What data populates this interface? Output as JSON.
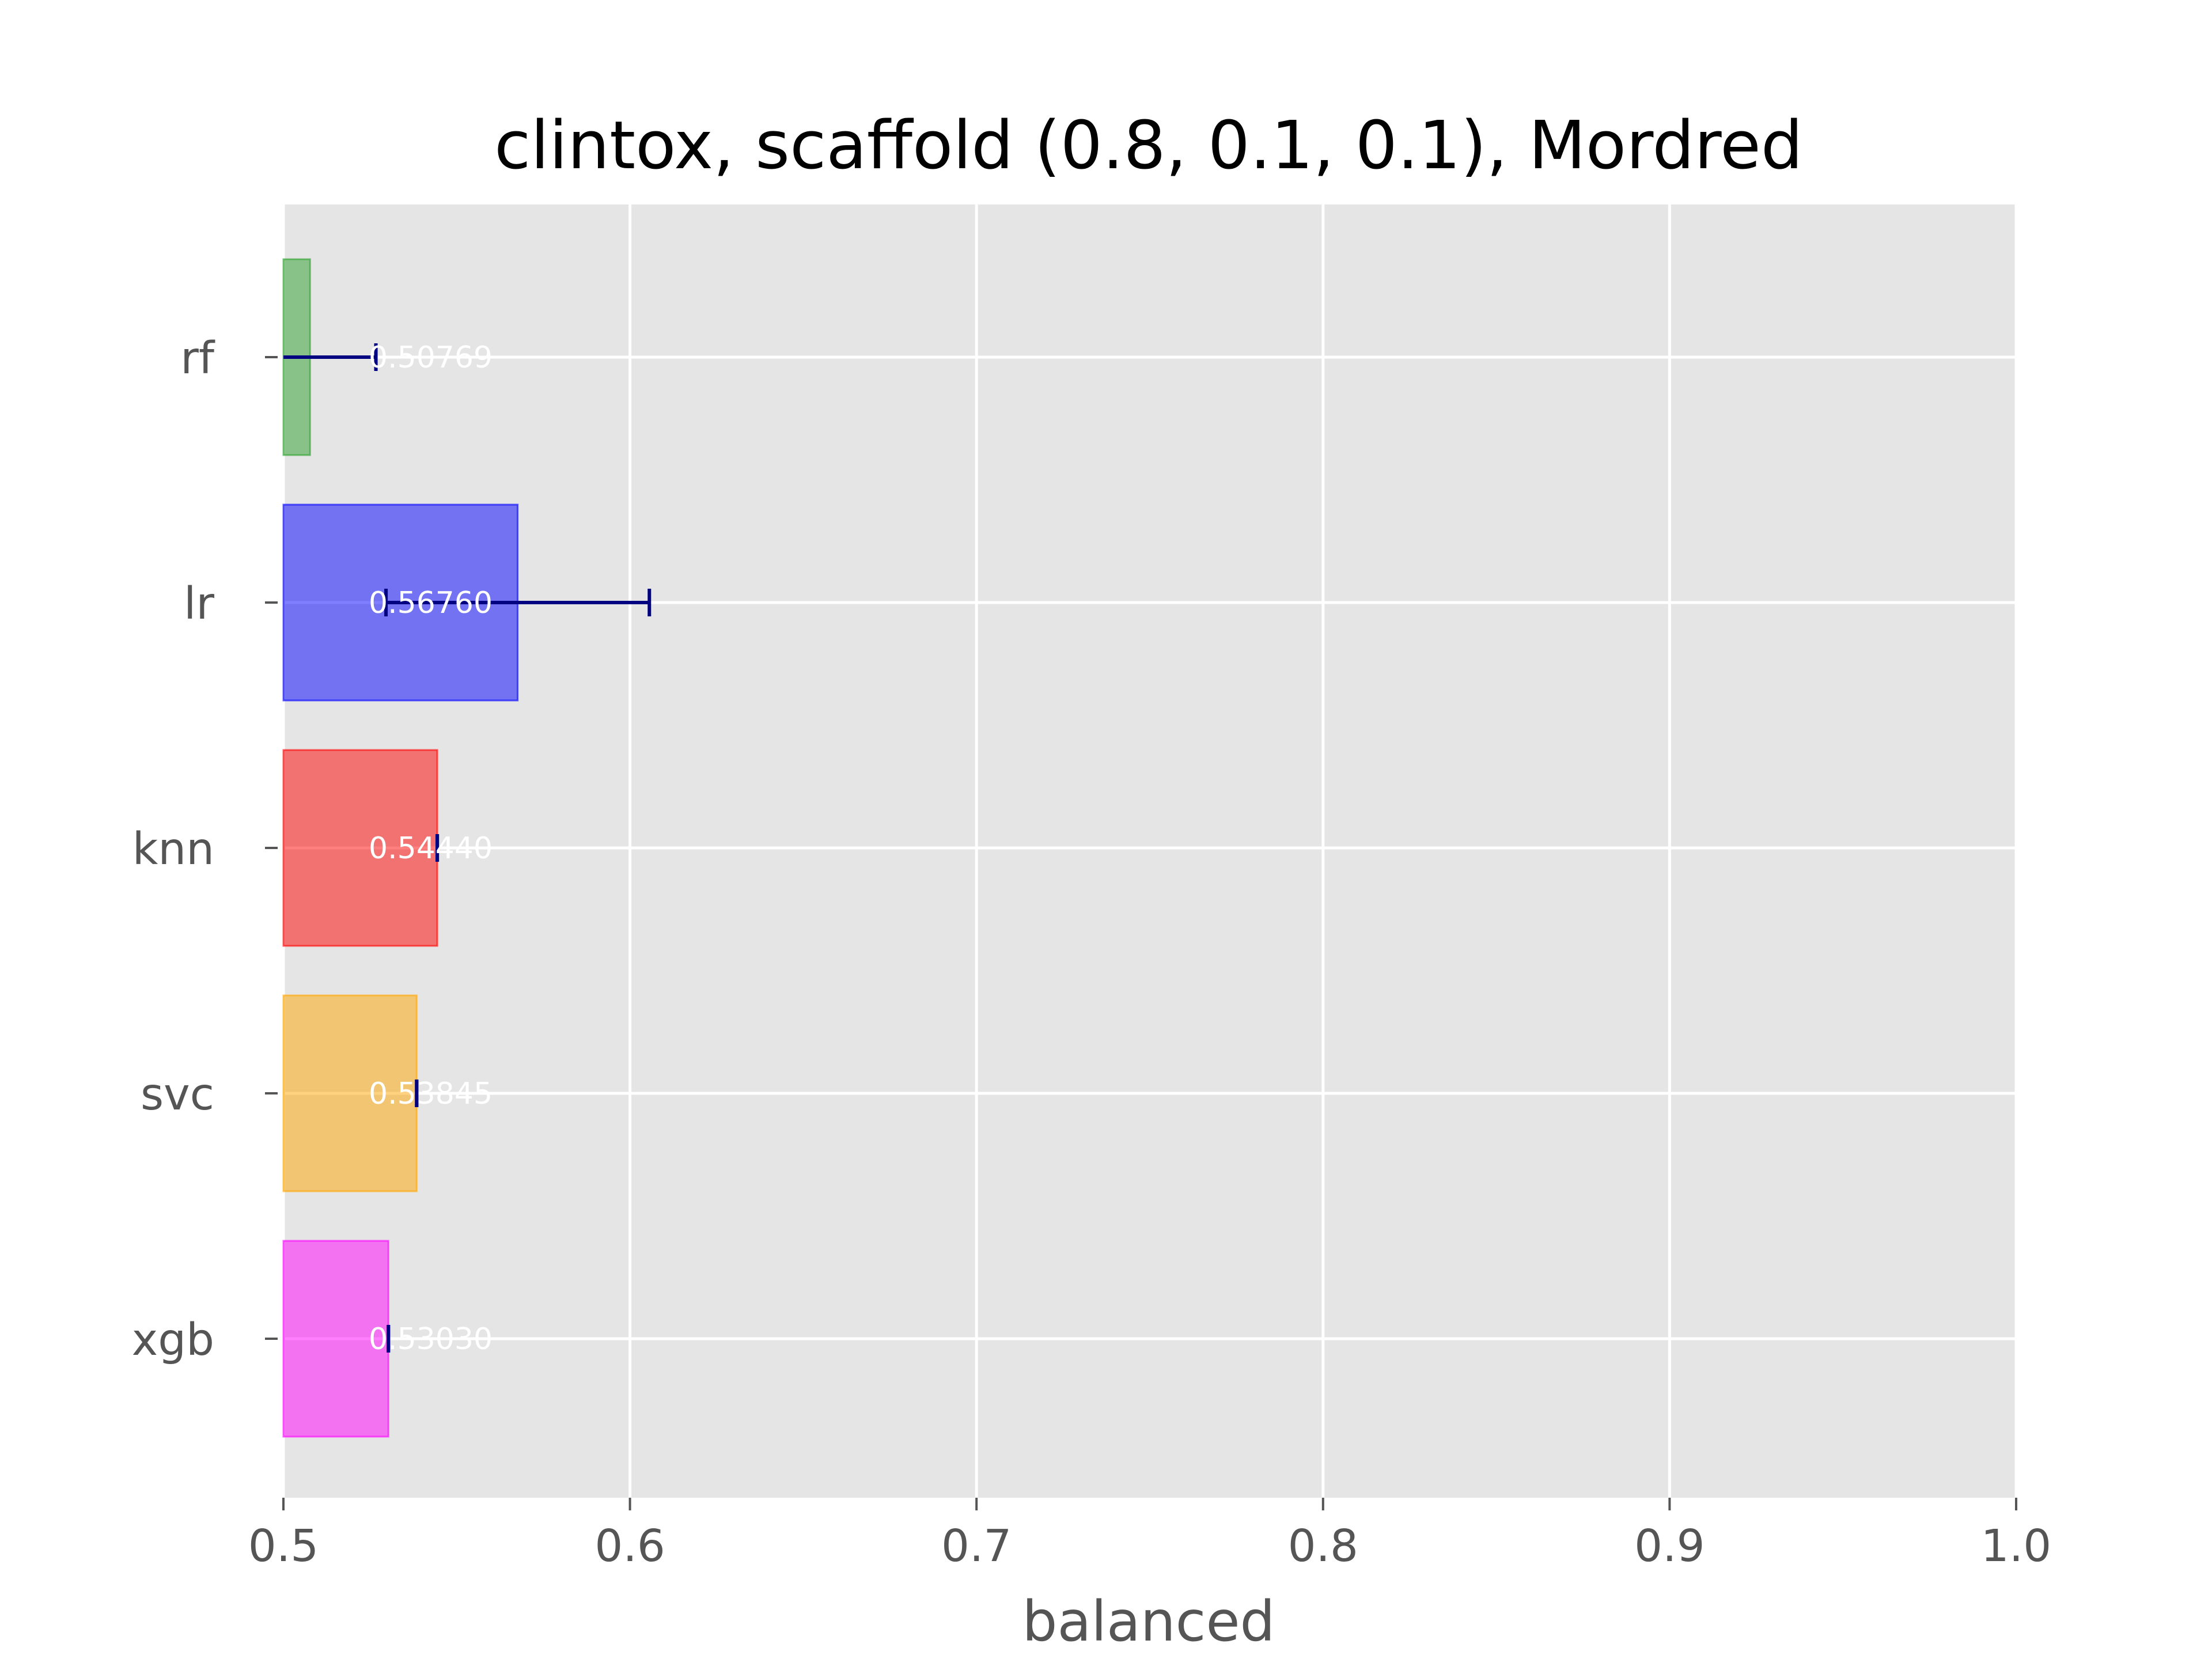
{
  "chart_data": {
    "type": "bar",
    "orientation": "horizontal",
    "title": "clintox, scaffold (0.8, 0.1, 0.1), Mordred",
    "xlabel": "balanced",
    "ylabel": "",
    "xlim": [
      0.5,
      1.0
    ],
    "xticks": [
      0.5,
      0.6,
      0.7,
      0.8,
      0.9,
      1.0
    ],
    "xtick_labels": [
      "0.5",
      "0.6",
      "0.7",
      "0.8",
      "0.9",
      "1.0"
    ],
    "categories": [
      "rf",
      "lr",
      "knn",
      "svc",
      "xgb"
    ],
    "values": [
      0.50769,
      0.5676,
      0.5444,
      0.53845,
      0.5303
    ],
    "value_labels": [
      "0.50769",
      "0.56760",
      "0.54440",
      "0.53845",
      "0.53030"
    ],
    "errors": [
      0.019,
      0.038,
      0.0,
      0.0,
      0.0
    ],
    "colors": [
      "#2ca02c",
      "#0000ff",
      "#ff0000",
      "#ffa500",
      "#ff00ff"
    ],
    "error_color": "#000080",
    "background": "#e5e5e5",
    "grid": true,
    "legend": false
  }
}
